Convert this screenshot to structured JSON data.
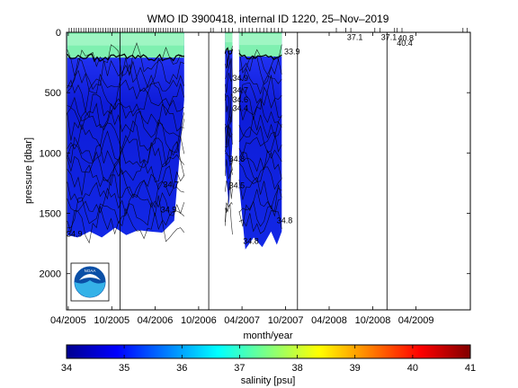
{
  "chart_data": {
    "type": "area",
    "title": "WMO ID 3900418, internal ID 1220, 25–Nov–2019",
    "xlabel": "month/year",
    "ylabel": "pressure [dbar]",
    "x_axis": {
      "start": "2005-03-25",
      "end": "2009-11-15",
      "tick_dates": [
        "2005-04-01",
        "2005-10-01",
        "2006-04-01",
        "2006-10-01",
        "2007-04-01",
        "2007-10-01",
        "2008-04-01",
        "2008-10-01",
        "2009-04-01"
      ],
      "tick_labels": [
        "04/2005",
        "10/2005",
        "04/2006",
        "10/2006",
        "04/2007",
        "10/2007",
        "04/2008",
        "10/2008",
        "04/2009"
      ]
    },
    "y_axis": {
      "reversed": true,
      "ylim": [
        0,
        2300
      ],
      "ticks": [
        0,
        500,
        1000,
        1500,
        2000
      ],
      "tick_labels": [
        "0",
        "500",
        "1000",
        "1500",
        "2000"
      ]
    },
    "year_markers": [
      "2005-11-05",
      "2006-11-12",
      "2007-11-20",
      "2008-11-30"
    ],
    "colorbar": {
      "label": "salinity [psu]",
      "range": [
        34,
        41
      ],
      "ticks": [
        34,
        35,
        36,
        37,
        38,
        39,
        40,
        41
      ],
      "tick_labels": [
        "34",
        "35",
        "36",
        "37",
        "38",
        "39",
        "40",
        "41"
      ],
      "colormap": [
        "#00008f",
        "#0000ff",
        "#0080ff",
        "#00ffff",
        "#80ff80",
        "#ffff00",
        "#ff8000",
        "#ff0000",
        "#800000"
      ]
    },
    "sections": [
      {
        "start": "2005-03-28",
        "end": "2006-08-01",
        "bottom": [
          [
            "2005-03-28",
            1680
          ],
          [
            "2005-05-10",
            1700
          ],
          [
            "2005-07-01",
            1650
          ],
          [
            "2005-08-20",
            1700
          ],
          [
            "2005-10-15",
            1620
          ],
          [
            "2005-12-01",
            1680
          ],
          [
            "2006-01-20",
            1640
          ],
          [
            "2006-03-10",
            1650
          ],
          [
            "2006-05-01",
            1660
          ],
          [
            "2006-06-20",
            1560
          ],
          [
            "2006-08-01",
            560
          ]
        ],
        "surface_depth": 210
      },
      {
        "start": "2007-01-20",
        "end": "2007-02-20",
        "bottom": [
          [
            "2007-01-20",
            1100
          ],
          [
            "2007-02-05",
            1440
          ],
          [
            "2007-02-20",
            900
          ]
        ],
        "surface_depth": 150
      },
      {
        "start": "2007-03-20",
        "end": "2007-09-15",
        "bottom": [
          [
            "2007-03-20",
            1260
          ],
          [
            "2007-04-15",
            1800
          ],
          [
            "2007-05-20",
            1700
          ],
          [
            "2007-06-25",
            1780
          ],
          [
            "2007-08-01",
            1650
          ],
          [
            "2007-08-25",
            1760
          ],
          [
            "2007-09-15",
            1650
          ]
        ],
        "surface_depth": 200
      }
    ],
    "contour_labels": [
      {
        "date": "2005-03-25",
        "pressure": 1670,
        "text": "34.9"
      },
      {
        "date": "2006-05-05",
        "pressure": 1260,
        "text": "34.7"
      },
      {
        "date": "2006-04-25",
        "pressure": 1470,
        "text": "34.9"
      },
      {
        "date": "2007-02-20",
        "pressure": 380,
        "text": "34.9"
      },
      {
        "date": "2007-02-20",
        "pressure": 480,
        "text": "34.7"
      },
      {
        "date": "2007-02-20",
        "pressure": 560,
        "text": "34.6"
      },
      {
        "date": "2007-02-20",
        "pressure": 630,
        "text": "34.4"
      },
      {
        "date": "2007-02-05",
        "pressure": 1050,
        "text": "34.8"
      },
      {
        "date": "2007-02-05",
        "pressure": 1270,
        "text": "34.5"
      },
      {
        "date": "2007-09-25",
        "pressure": 160,
        "text": "33.9"
      },
      {
        "date": "2007-08-25",
        "pressure": 1560,
        "text": "34.8"
      },
      {
        "date": "2007-04-05",
        "pressure": 1730,
        "text": "34.8"
      },
      {
        "date": "2008-06-15",
        "pressure": 40,
        "text": "37.1"
      },
      {
        "date": "2008-11-05",
        "pressure": 40,
        "text": "37.1"
      },
      {
        "date": "2009-01-15",
        "pressure": 50,
        "text": "40.8"
      },
      {
        "date": "2009-01-10",
        "pressure": 90,
        "text": "40.4"
      }
    ],
    "top_ticks_dates": [
      "2005-04-05",
      "2005-04-15",
      "2005-04-25",
      "2005-05-05",
      "2005-05-15",
      "2005-05-25",
      "2005-06-05",
      "2005-06-15",
      "2005-06-25",
      "2005-07-05",
      "2005-07-15",
      "2005-07-25",
      "2005-08-05",
      "2005-08-15",
      "2005-08-25",
      "2005-09-05",
      "2005-09-15",
      "2005-09-25",
      "2005-10-05",
      "2005-10-15",
      "2005-10-25",
      "2005-11-05",
      "2005-11-15",
      "2005-11-25",
      "2005-12-05",
      "2005-12-15",
      "2005-12-25",
      "2006-01-05",
      "2006-01-15",
      "2006-01-25",
      "2006-02-05",
      "2006-02-15",
      "2006-02-25",
      "2006-03-05",
      "2006-03-15",
      "2006-03-25",
      "2006-04-05",
      "2006-04-15",
      "2006-04-25",
      "2006-05-05",
      "2006-05-15",
      "2006-05-25",
      "2006-06-05",
      "2006-06-15",
      "2006-06-25",
      "2006-07-05",
      "2006-07-15",
      "2006-07-25",
      "2006-11-20",
      "2006-12-01",
      "2007-01-05",
      "2007-01-20",
      "2007-02-05",
      "2007-02-20",
      "2007-03-20",
      "2007-04-01",
      "2007-04-15",
      "2007-05-01",
      "2007-05-15",
      "2007-06-01",
      "2007-06-15",
      "2007-07-01",
      "2007-07-15",
      "2007-08-01",
      "2007-08-15",
      "2007-09-01",
      "2007-09-15",
      "2008-05-01",
      "2008-06-10",
      "2008-07-01",
      "2008-10-10",
      "2008-11-01",
      "2009-01-01",
      "2009-01-12",
      "2009-02-01",
      "2009-10-15",
      "2009-11-01"
    ]
  },
  "logo": {
    "text": "NOAA"
  }
}
